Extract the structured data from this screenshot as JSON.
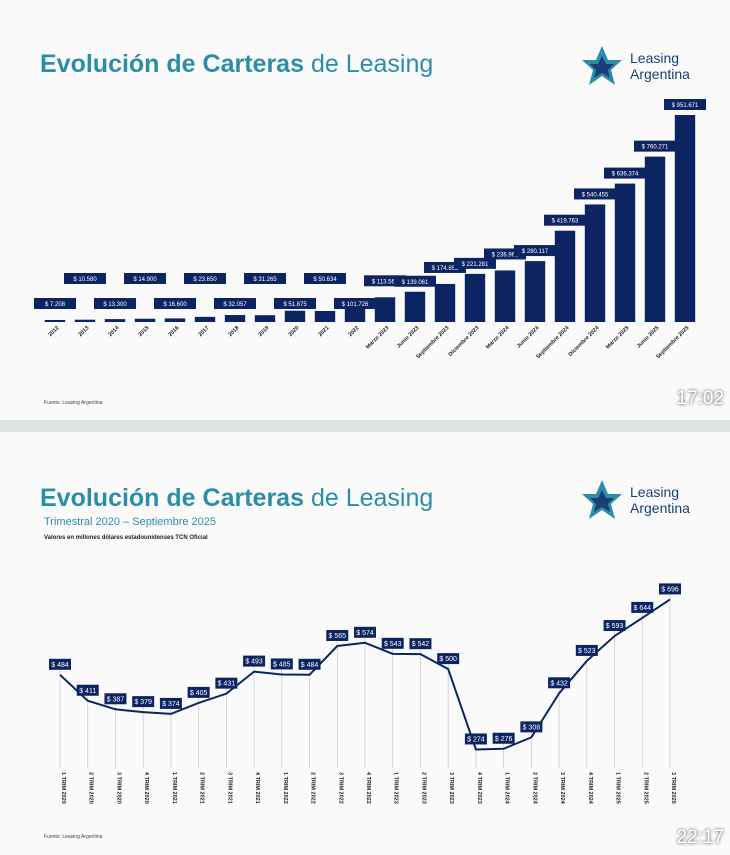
{
  "slide1": {
    "title_bold": "Evolución de Carteras",
    "title_light": "de Leasing",
    "logo": "Leasing Argentina",
    "source": "Fuente: Leasing Argentina",
    "timestamp": "17:02"
  },
  "slide2": {
    "title_bold": "Evolución de Carteras",
    "title_light": "de Leasing",
    "subtitle": "Trimestral 2020 – Septiembre 2025",
    "note": "Valores en millones dólares estadounidenses TCN Oficial",
    "logo": "Leasing Argentina",
    "source": "Fuente: Leasing Argentina",
    "timestamp": "22:17"
  },
  "colors": {
    "bar": "#0d2463",
    "title": "#2a8ea8",
    "line": "#0d2463"
  },
  "chart_data": [
    {
      "type": "bar",
      "categories": [
        "2012",
        "2013",
        "2014",
        "2015",
        "2016",
        "2017",
        "2018",
        "2019",
        "2020",
        "2021",
        "2022",
        "Marzo 2023",
        "Junio 2023",
        "Septiembre 2023",
        "Diciembre 2023",
        "Marzo 2024",
        "Junio 2024",
        "Septiembre 2024",
        "Diciembre 2024",
        "Marzo 2025",
        "Junio 2025",
        "Septiembre 2025"
      ],
      "values": [
        7208,
        10580,
        13300,
        14900,
        16600,
        23650,
        32057,
        31265,
        51875,
        50634,
        101726,
        113566,
        139061,
        174853,
        221281,
        236963,
        280117,
        419763,
        540455,
        636374,
        760271,
        951671
      ],
      "labels": [
        "$ 7.208",
        "$ 10.580",
        "$ 13.300",
        "$ 14.900",
        "$ 16.600",
        "$ 23.650",
        "$ 32.057",
        "$ 31.265",
        "$ 51.875",
        "$ 50.634",
        "$ 101.726",
        "$ 113.566",
        "$ 139.061",
        "$ 174.853",
        "$ 221.281",
        "$ 236.963",
        "$ 280.117",
        "$ 419.763",
        "$ 540.455",
        "$ 636.374",
        "$ 760.271",
        "$ 951.671"
      ],
      "title": "Evolución de Carteras de Leasing",
      "grid": false
    },
    {
      "type": "line",
      "categories": [
        "1 TRIM 2020",
        "2 TRIM 2020",
        "3 TRIM 2020",
        "4 TRIM 2020",
        "1 TRIM 2021",
        "2 TRIM 2021",
        "3 TRIM 2021",
        "4 TRIM 2021",
        "1 TRIM 2022",
        "2 TRIM 2022",
        "3 TRIM 2022",
        "4 TRIM 2022",
        "1 TRIM 2023",
        "2 TRIM 2023",
        "3 TRIM 2023",
        "4 TRIM 2023",
        "1 TRIM 2024",
        "2 TRIM 2024",
        "3 TRIM 2024",
        "4 TRIM 2024",
        "1 TRIM 2025",
        "2 TRIM 2025",
        "3 TRIM 2025"
      ],
      "values": [
        484,
        411,
        387,
        379,
        374,
        405,
        431,
        493,
        485,
        484,
        565,
        574,
        543,
        542,
        500,
        274,
        276,
        308,
        432,
        523,
        593,
        644,
        696
      ],
      "labels": [
        "$ 484",
        "$ 411",
        "$ 387",
        "$ 379",
        "$ 374",
        "$ 405",
        "$ 431",
        "$ 493",
        "$ 485",
        "$ 484",
        "$ 565",
        "$ 574",
        "$ 543",
        "$ 542",
        "$ 500",
        "$ 274",
        "$ 276",
        "$ 308",
        "$ 432",
        "$ 523",
        "$ 593",
        "$ 644",
        "$ 696"
      ],
      "title": "Evolución de Carteras de Leasing",
      "subtitle": "Trimestral 2020 – Septiembre 2025",
      "grid": false
    }
  ]
}
